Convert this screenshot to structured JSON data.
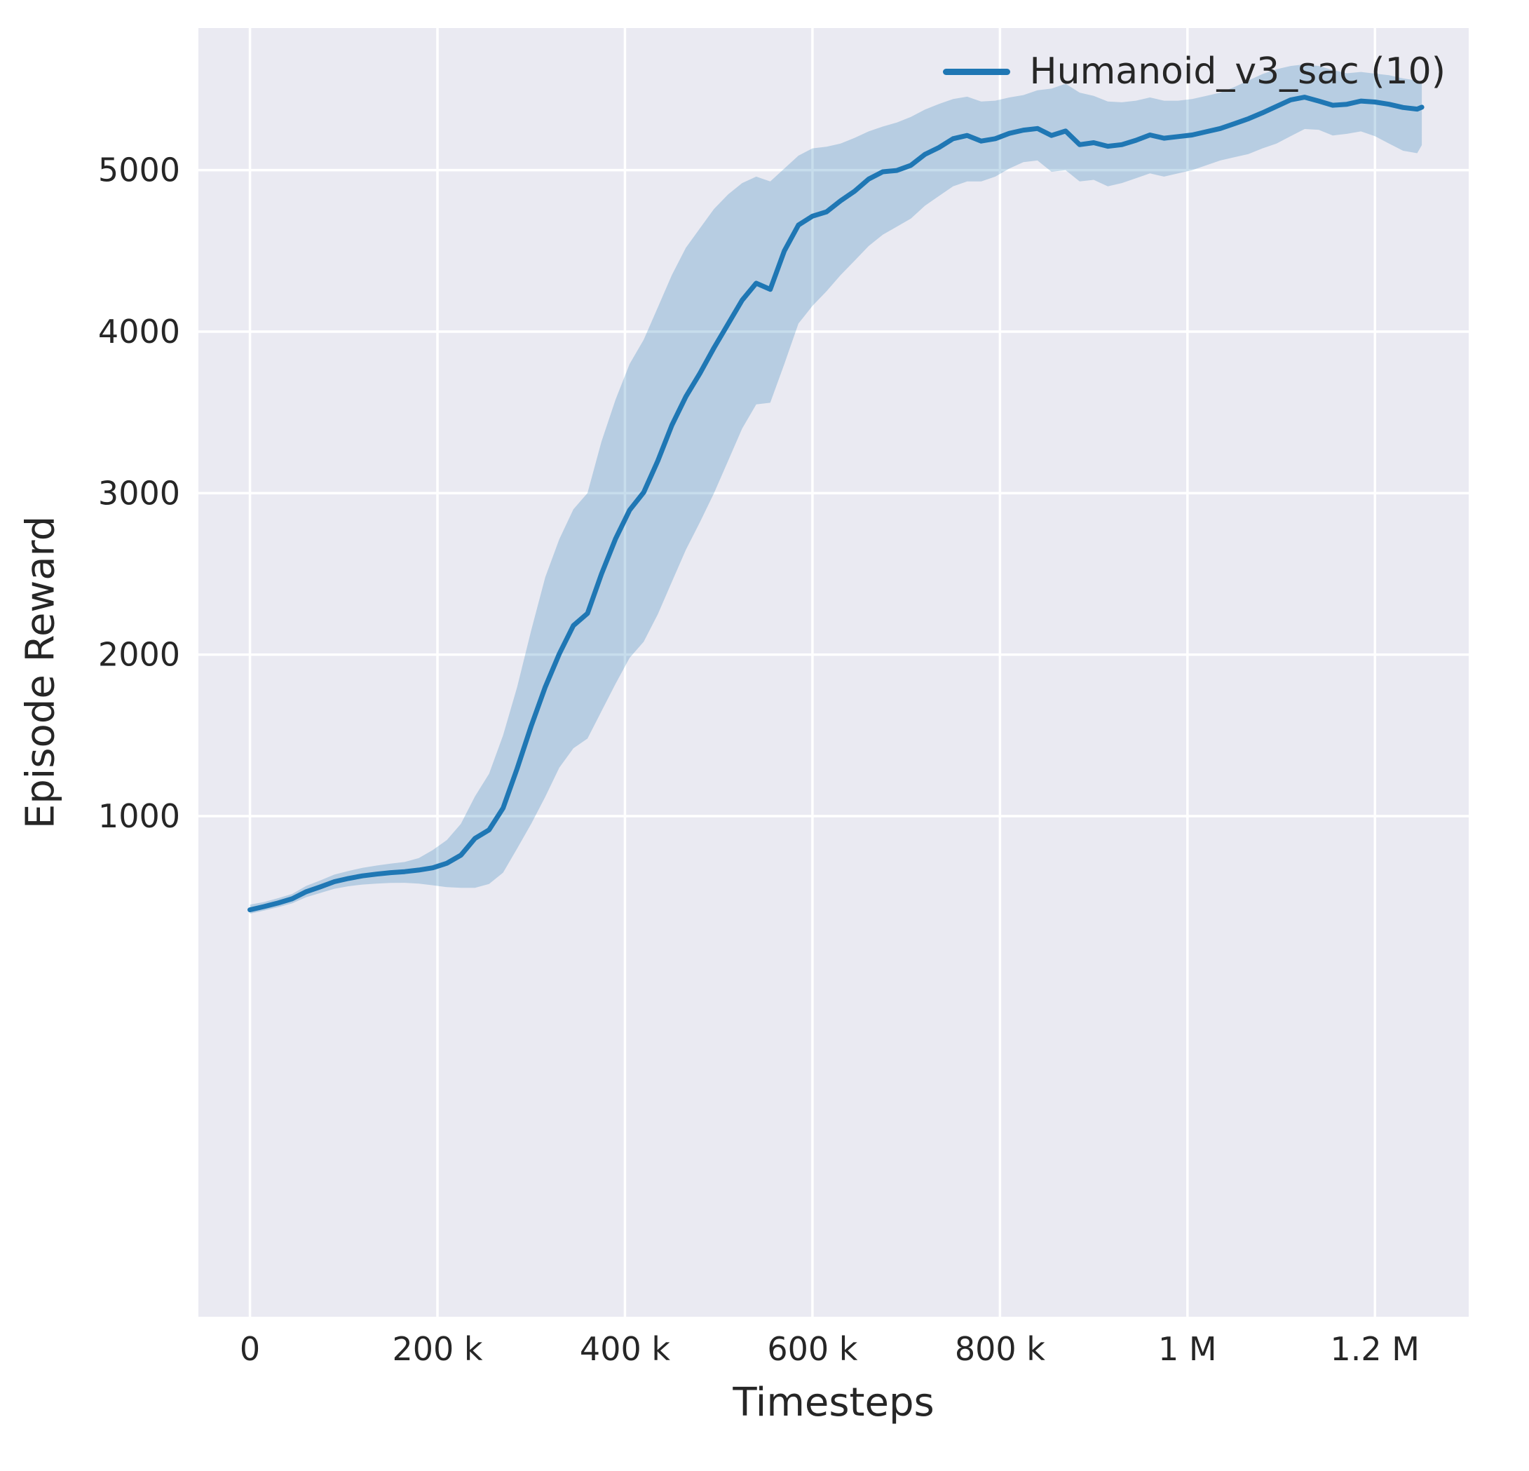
{
  "chart_data": {
    "type": "line",
    "title": "",
    "xlabel": "Timesteps",
    "ylabel": "Episode Reward",
    "grid": true,
    "plot_bg": "#eaeaf2",
    "grid_color": "#ffffff",
    "text_color": "#262626",
    "legend_position": "upper right",
    "legend": [
      {
        "label": "Humanoid_v3_sac (10)",
        "color": "#1f77b4"
      }
    ],
    "xlim": [
      -55000,
      1300000
    ],
    "ylim": [
      -2100,
      5880
    ],
    "x_ticks": [
      {
        "value": 0,
        "label": "0"
      },
      {
        "value": 200000,
        "label": "200 k"
      },
      {
        "value": 400000,
        "label": "400 k"
      },
      {
        "value": 600000,
        "label": "600 k"
      },
      {
        "value": 800000,
        "label": "800 k"
      },
      {
        "value": 1000000,
        "label": "1 M"
      },
      {
        "value": 1200000,
        "label": "1.2 M"
      }
    ],
    "y_ticks": [
      {
        "value": 1000,
        "label": "1000"
      },
      {
        "value": 2000,
        "label": "2000"
      },
      {
        "value": 3000,
        "label": "3000"
      },
      {
        "value": 4000,
        "label": "4000"
      },
      {
        "value": 5000,
        "label": "5000"
      }
    ],
    "series": [
      {
        "name": "Humanoid_v3_sac (10)",
        "color": "#1f77b4",
        "band_alpha": 0.25,
        "x": [
          0,
          15000,
          30000,
          45000,
          60000,
          75000,
          90000,
          105000,
          120000,
          135000,
          150000,
          165000,
          180000,
          195000,
          210000,
          225000,
          240000,
          255000,
          270000,
          285000,
          300000,
          315000,
          330000,
          345000,
          360000,
          375000,
          390000,
          405000,
          420000,
          435000,
          450000,
          465000,
          480000,
          495000,
          510000,
          525000,
          540000,
          555000,
          570000,
          585000,
          600000,
          615000,
          630000,
          645000,
          660000,
          675000,
          690000,
          705000,
          720000,
          735000,
          750000,
          765000,
          780000,
          795000,
          810000,
          825000,
          840000,
          855000,
          870000,
          885000,
          900000,
          915000,
          930000,
          945000,
          960000,
          975000,
          990000,
          1005000,
          1020000,
          1035000,
          1050000,
          1065000,
          1080000,
          1095000,
          1110000,
          1125000,
          1140000,
          1155000,
          1170000,
          1185000,
          1200000,
          1215000,
          1230000,
          1245000,
          1250000
        ],
        "mean": [
          420,
          440,
          462,
          488,
          532,
          562,
          594,
          614,
          630,
          641,
          650,
          656,
          666,
          680,
          708,
          758,
          862,
          915,
          1050,
          1295,
          1558,
          1800,
          2005,
          2180,
          2255,
          2500,
          2718,
          2895,
          3005,
          3200,
          3420,
          3598,
          3742,
          3900,
          4048,
          4195,
          4300,
          4262,
          4500,
          4660,
          4715,
          4742,
          4810,
          4870,
          4945,
          4990,
          4998,
          5030,
          5098,
          5140,
          5195,
          5215,
          5180,
          5195,
          5228,
          5248,
          5258,
          5215,
          5242,
          5158,
          5170,
          5148,
          5158,
          5185,
          5218,
          5198,
          5208,
          5218,
          5238,
          5258,
          5288,
          5318,
          5355,
          5395,
          5435,
          5452,
          5428,
          5402,
          5408,
          5428,
          5422,
          5408,
          5388,
          5378,
          5390
        ],
        "lower": [
          396,
          415,
          436,
          460,
          498,
          524,
          550,
          566,
          576,
          582,
          586,
          587,
          582,
          572,
          560,
          556,
          556,
          580,
          650,
          800,
          952,
          1120,
          1300,
          1420,
          1480,
          1650,
          1820,
          1980,
          2080,
          2250,
          2450,
          2650,
          2820,
          3000,
          3200,
          3400,
          3550,
          3560,
          3800,
          4050,
          4160,
          4250,
          4350,
          4440,
          4530,
          4600,
          4650,
          4700,
          4780,
          4840,
          4900,
          4930,
          4930,
          4960,
          5010,
          5050,
          5060,
          4990,
          5000,
          4930,
          4940,
          4900,
          4920,
          4950,
          4980,
          4960,
          4980,
          5000,
          5030,
          5060,
          5080,
          5100,
          5135,
          5165,
          5210,
          5255,
          5250,
          5215,
          5225,
          5240,
          5210,
          5165,
          5120,
          5105,
          5155
        ],
        "upper": [
          452,
          468,
          492,
          518,
          568,
          602,
          638,
          660,
          680,
          694,
          706,
          716,
          740,
          790,
          852,
          952,
          1122,
          1262,
          1500,
          1800,
          2150,
          2480,
          2715,
          2900,
          3000,
          3320,
          3580,
          3800,
          3950,
          4150,
          4350,
          4520,
          4640,
          4760,
          4850,
          4920,
          4960,
          4930,
          5010,
          5090,
          5135,
          5145,
          5165,
          5200,
          5240,
          5270,
          5295,
          5330,
          5375,
          5410,
          5440,
          5455,
          5425,
          5430,
          5450,
          5465,
          5495,
          5505,
          5535,
          5480,
          5460,
          5425,
          5420,
          5430,
          5450,
          5430,
          5430,
          5440,
          5460,
          5480,
          5515,
          5555,
          5595,
          5625,
          5645,
          5655,
          5645,
          5620,
          5600,
          5608,
          5598,
          5588,
          5568,
          5555,
          5545
        ]
      }
    ]
  }
}
